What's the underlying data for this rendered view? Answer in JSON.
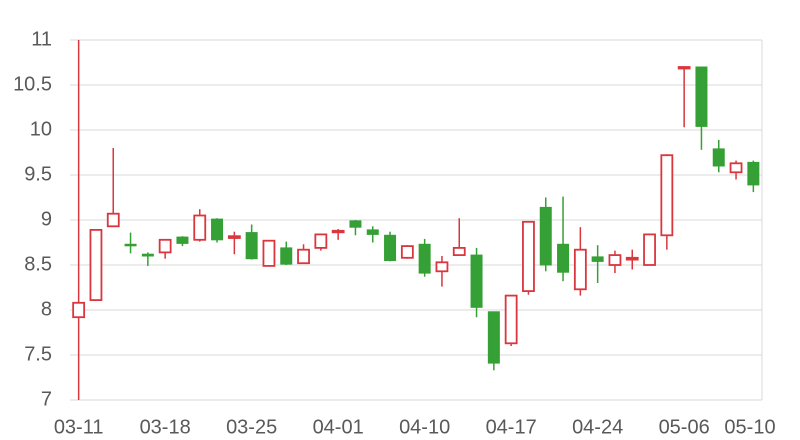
{
  "chart_data": {
    "type": "candlestick",
    "categories": [
      "03-11",
      null,
      null,
      null,
      null,
      "03-18",
      null,
      null,
      null,
      null,
      "03-25",
      null,
      null,
      null,
      null,
      "04-01",
      null,
      null,
      null,
      null,
      "04-10",
      null,
      null,
      null,
      null,
      "04-17",
      null,
      null,
      null,
      null,
      "04-24",
      null,
      null,
      null,
      null,
      "05-06",
      null,
      null,
      null,
      "05-10"
    ],
    "open": [
      7.92,
      8.11,
      8.93,
      8.73,
      8.62,
      8.64,
      8.81,
      8.78,
      9.01,
      8.8,
      8.86,
      8.49,
      8.69,
      8.52,
      8.69,
      8.87,
      8.99,
      8.89,
      8.83,
      8.58,
      8.73,
      8.43,
      8.61,
      8.61,
      7.98,
      7.63,
      8.21,
      9.14,
      8.73,
      8.23,
      8.59,
      8.5,
      8.56,
      8.5,
      8.83,
      10.69,
      10.7,
      9.79,
      9.53,
      9.64
    ],
    "high": [
      11,
      8.89,
      9.8,
      8.86,
      8.64,
      8.78,
      8.82,
      9.12,
      9.02,
      8.87,
      8.95,
      8.77,
      8.76,
      8.73,
      8.84,
      8.9,
      9.0,
      8.93,
      8.87,
      8.72,
      8.79,
      8.6,
      9.02,
      8.69,
      7.98,
      8.16,
      8.98,
      9.25,
      9.26,
      8.92,
      8.72,
      8.66,
      8.67,
      8.84,
      9.73,
      10.7,
      10.7,
      9.89,
      9.66,
      9.66
    ],
    "low": [
      7,
      8.11,
      8.93,
      8.63,
      8.49,
      8.57,
      8.71,
      8.76,
      8.75,
      8.62,
      8.56,
      8.49,
      8.5,
      8.52,
      8.66,
      8.78,
      8.83,
      8.75,
      8.54,
      8.57,
      8.37,
      8.26,
      8.6,
      7.92,
      7.33,
      7.6,
      8.17,
      8.43,
      8.32,
      8.16,
      8.3,
      8.41,
      8.45,
      8.5,
      8.67,
      10.03,
      9.78,
      9.53,
      9.45,
      9.31
    ],
    "close": [
      8.08,
      8.89,
      9.07,
      8.72,
      8.6,
      8.78,
      8.74,
      9.05,
      8.78,
      8.82,
      8.57,
      8.77,
      8.51,
      8.67,
      8.84,
      8.88,
      8.92,
      8.84,
      8.55,
      8.71,
      8.41,
      8.53,
      8.69,
      8.03,
      7.41,
      8.16,
      8.98,
      8.5,
      8.42,
      8.67,
      8.54,
      8.61,
      8.58,
      8.84,
      9.72,
      10.7,
      10.04,
      9.6,
      9.63,
      9.39
    ],
    "up_color": "#d9363e",
    "down_color": "#35a035",
    "ylim": [
      7,
      11
    ],
    "yticks": [
      7,
      7.5,
      8,
      8.5,
      9,
      9.5,
      10,
      10.5,
      11
    ],
    "grid": true
  }
}
